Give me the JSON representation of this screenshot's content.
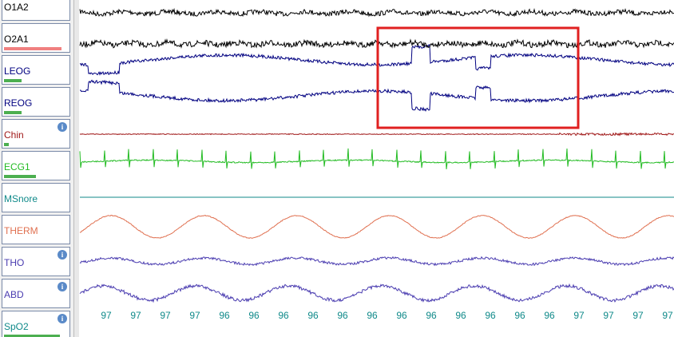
{
  "channels": [
    {
      "label": "O1A2",
      "color": "#000000"
    },
    {
      "label": "O2A1",
      "color": "#000000"
    },
    {
      "label": "LEOG",
      "color": "#000080"
    },
    {
      "label": "REOG",
      "color": "#000080"
    },
    {
      "label": "Chin",
      "color": "#a01818"
    },
    {
      "label": "ECG1",
      "color": "#22bb22"
    },
    {
      "label": "MSnore",
      "color": "#108a8a"
    },
    {
      "label": "THERM",
      "color": "#e07050"
    },
    {
      "label": "THO",
      "color": "#4a3cb0"
    },
    {
      "label": "ABD",
      "color": "#4a3cb0"
    },
    {
      "label": "SpO2",
      "color": "#108a8a"
    }
  ],
  "spo2_readings": [
    97,
    97,
    97,
    97,
    96,
    96,
    96,
    96,
    96,
    96,
    96,
    96,
    96,
    96,
    96,
    96,
    97,
    97,
    97,
    97
  ]
}
